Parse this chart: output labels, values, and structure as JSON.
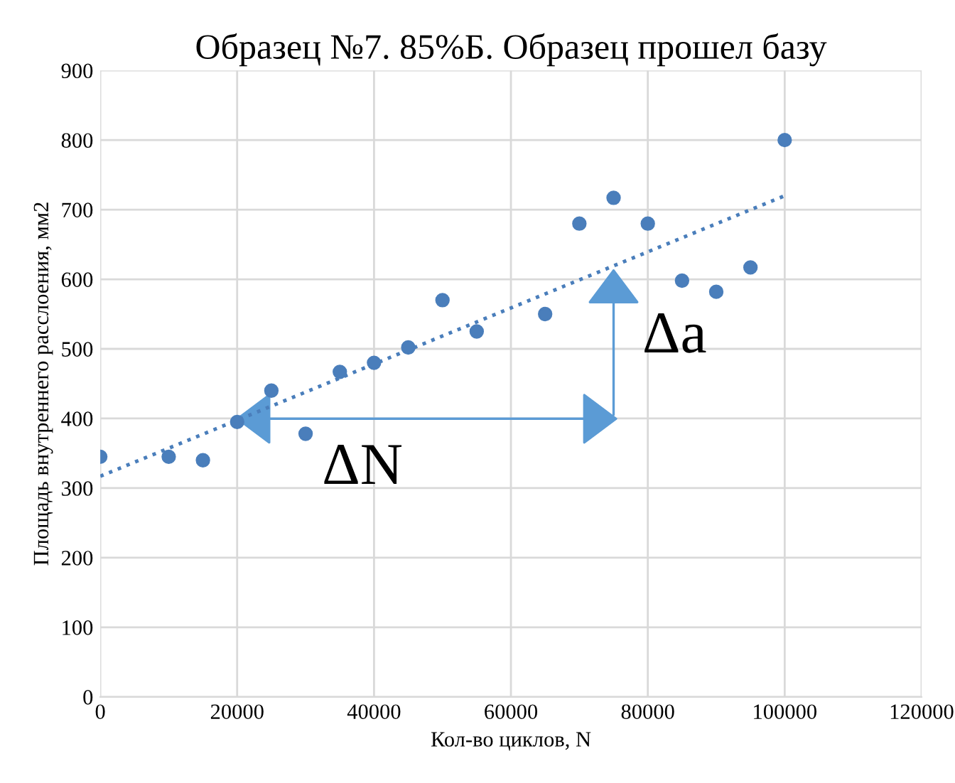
{
  "chart_data": {
    "type": "scatter",
    "title": "Образец №7. 85%Б. Образец прошел базу",
    "xlabel": "Кол-во циклов, N",
    "ylabel": "Площадь внутреннего расслоения, мм2",
    "series": [
      {
        "color": "#4a7ebb",
        "marker": "circle",
        "x": [
          0,
          10000,
          15000,
          20000,
          25000,
          30000,
          35000,
          40000,
          45000,
          50000,
          55000,
          65000,
          70000,
          75000,
          80000,
          85000,
          90000,
          95000,
          100000
        ],
        "values": [
          345,
          345,
          340,
          395,
          440,
          378,
          467,
          480,
          502,
          570,
          525,
          550,
          680,
          717,
          680,
          598,
          582,
          617,
          800
        ]
      },
      {
        "type": "line",
        "marker": "none",
        "line_style": "dotted",
        "color": "#4a7ebb",
        "x": [
          0,
          100000
        ],
        "values": [
          317,
          720
        ]
      }
    ],
    "annotations": [
      "ΔN",
      "Δa"
    ],
    "xlim": [
      0,
      120000
    ],
    "xticks": [
      0,
      20000,
      40000,
      60000,
      80000,
      100000,
      120000
    ],
    "ylim": [
      0,
      900
    ],
    "yticks": [
      0,
      100,
      200,
      300,
      400,
      500,
      600,
      700,
      800,
      900
    ],
    "grid": true,
    "legend": false
  }
}
